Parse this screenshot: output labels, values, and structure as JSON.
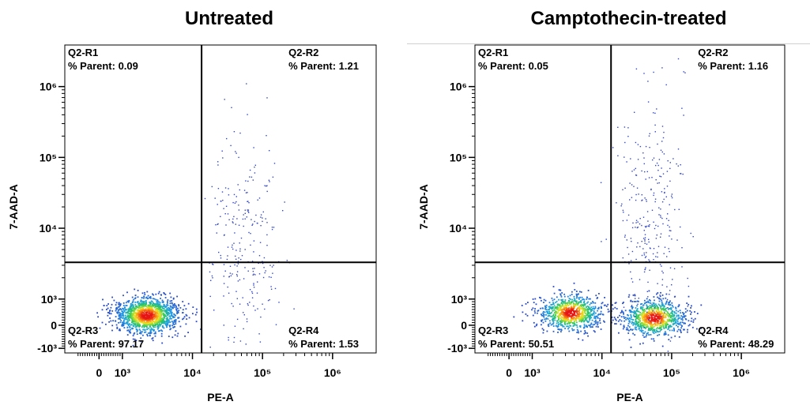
{
  "chart_data": [
    {
      "type": "scatter",
      "title": "Untreated",
      "xlabel": "PE-A",
      "ylabel": "7-AAD-A",
      "x_scale": "biexponential",
      "y_scale": "biexponential",
      "x_ticks": [
        "0",
        "10³",
        "10⁴",
        "10⁵",
        "10⁶"
      ],
      "y_ticks": [
        "10⁶",
        "10⁵",
        "10⁴",
        "10³",
        "0",
        "-10³"
      ],
      "gate": {
        "x": 13500,
        "y": 3300
      },
      "quadrants": [
        {
          "name": "Q2-R1",
          "label": "% Parent:",
          "value": 0.09,
          "display": "0.09",
          "position": "top-left"
        },
        {
          "name": "Q2-R2",
          "label": "% Parent:",
          "value": 1.21,
          "display": "1.21",
          "position": "top-right"
        },
        {
          "name": "Q2-R3",
          "label": "% Parent:",
          "value": 97.17,
          "display": "97.17",
          "position": "bottom-left"
        },
        {
          "name": "Q2-R4",
          "label": "% Parent:",
          "value": 1.53,
          "display": "1.53",
          "position": "bottom-right"
        }
      ],
      "populations": [
        {
          "center": [
            2200,
            400
          ],
          "count": 1400,
          "color_scale": "density"
        },
        {
          "center": [
            55000,
            6000
          ],
          "count": 260,
          "color_scale": "sparse"
        }
      ]
    },
    {
      "type": "scatter",
      "title": "Camptothecin-treated",
      "xlabel": "PE-A",
      "ylabel": "7-AAD-A",
      "x_scale": "biexponential",
      "y_scale": "biexponential",
      "x_ticks": [
        "0",
        "10³",
        "10⁴",
        "10⁵",
        "10⁶"
      ],
      "y_ticks": [
        "10⁶",
        "10⁵",
        "10⁴",
        "10³",
        "0",
        "-10³"
      ],
      "gate": {
        "x": 13500,
        "y": 3300
      },
      "quadrants": [
        {
          "name": "Q2-R1",
          "label": "% Parent:",
          "value": 0.05,
          "display": "0.05",
          "position": "top-left"
        },
        {
          "name": "Q2-R2",
          "label": "% Parent:",
          "value": 1.16,
          "display": "1.16",
          "position": "top-right"
        },
        {
          "name": "Q2-R3",
          "label": "% Parent:",
          "value": 50.51,
          "display": "50.51",
          "position": "bottom-left"
        },
        {
          "name": "Q2-R4",
          "label": "% Parent:",
          "value": 48.29,
          "display": "48.29",
          "position": "bottom-right"
        }
      ],
      "populations": [
        {
          "center": [
            3500,
            500
          ],
          "count": 900,
          "color_scale": "density"
        },
        {
          "center": [
            55000,
            300
          ],
          "count": 900,
          "color_scale": "density"
        },
        {
          "center": [
            50000,
            12000
          ],
          "count": 300,
          "color_scale": "sparse"
        }
      ]
    }
  ]
}
